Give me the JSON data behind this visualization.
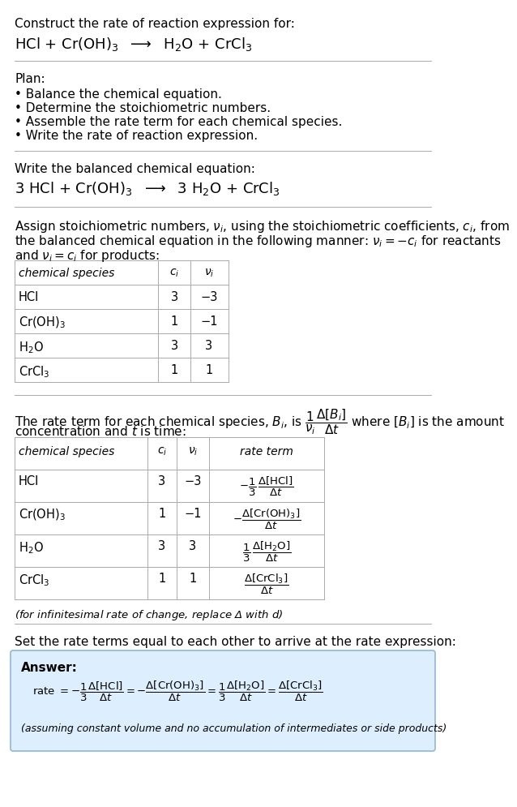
{
  "bg_color": "#ffffff",
  "text_color": "#000000",
  "table_line_color": "#aaaaaa",
  "answer_box_color": "#ddeeff",
  "answer_box_edge": "#99bbdd",
  "title_line1": "Construct the rate of reaction expression for:",
  "plan_header": "Plan:",
  "plan_items": [
    "• Balance the chemical equation.",
    "• Determine the stoichiometric numbers.",
    "• Assemble the rate term for each chemical species.",
    "• Write the rate of reaction expression."
  ],
  "balanced_header": "Write the balanced chemical equation:",
  "stoich_text1": "Assign stoichiometric numbers, $\\nu_i$, using the stoichiometric coefficients, $c_i$, from",
  "stoich_text2": "the balanced chemical equation in the following manner: $\\nu_i = -c_i$ for reactants",
  "stoich_text3": "and $\\nu_i = c_i$ for products:",
  "rate_text1": "The rate term for each chemical species, $B_i$, is $\\dfrac{1}{\\nu_i}\\dfrac{\\Delta[B_i]}{\\Delta t}$ where $[B_i]$ is the amount",
  "rate_text2": "concentration and $t$ is time:",
  "infinitesimal_note": "(for infinitesimal rate of change, replace Δ with $d$)",
  "set_equal_text": "Set the rate terms equal to each other to arrive at the rate expression:",
  "answer_label": "Answer:",
  "answer_note": "(assuming constant volume and no accumulation of intermediates or side products)"
}
